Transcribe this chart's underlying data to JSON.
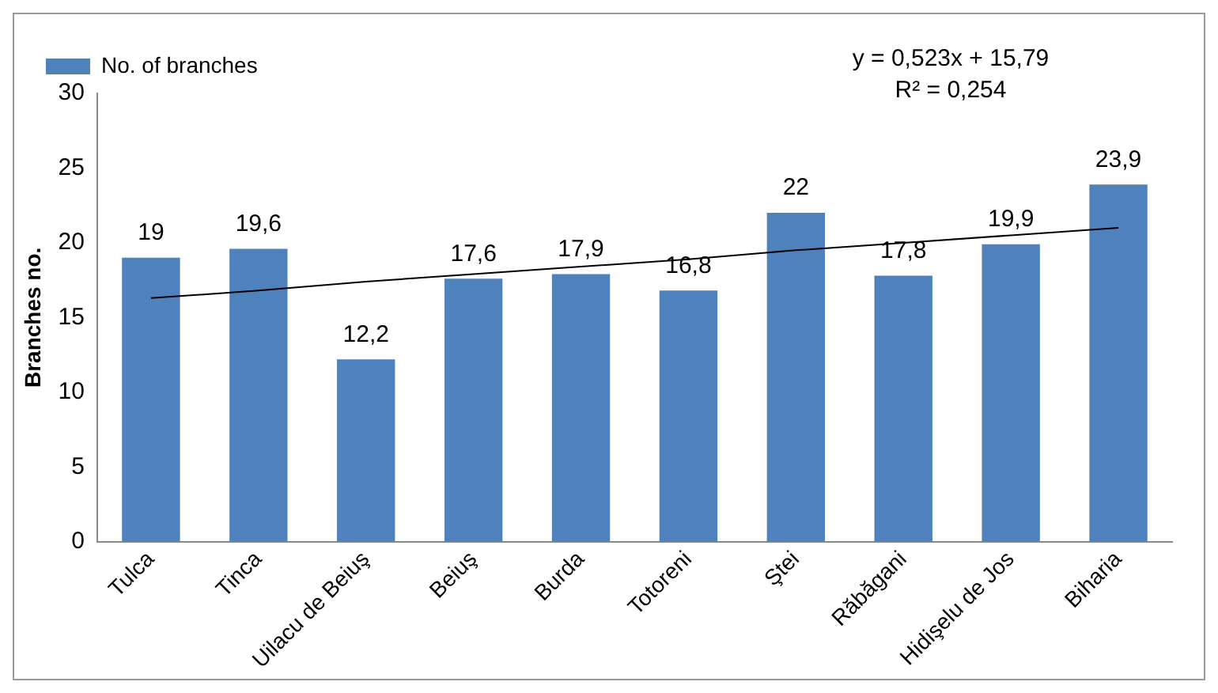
{
  "chart_data": {
    "type": "bar",
    "ylabel": "Branches no.",
    "categories": [
      "Tulca",
      "Tinca",
      "Uilacu de Beiuş",
      "Beiuş",
      "Burda",
      "Totoreni",
      "Ştei",
      "Răbăgani",
      "Hidişelu de Jos",
      "Biharia"
    ],
    "series": [
      {
        "name": "No. of branches",
        "color": "#4f81bd",
        "values": [
          19,
          19.6,
          12.2,
          17.6,
          17.9,
          16.8,
          22,
          17.8,
          19.9,
          23.9
        ],
        "value_labels": [
          "19",
          "19,6",
          "12,2",
          "17,6",
          "17,9",
          "16,8",
          "22",
          "17,8",
          "19,9",
          "23,9"
        ]
      },
      {
        "type": "line",
        "color": "#000000",
        "values": [
          16.3,
          16.8,
          17.4,
          17.9,
          18.4,
          18.9,
          19.5,
          20.0,
          20.5,
          21.0
        ]
      }
    ],
    "ylim": [
      0,
      30
    ],
    "yticks": [
      0,
      5,
      10,
      15,
      20,
      25,
      30
    ],
    "grid": false,
    "legend": "top",
    "marker": "none",
    "annotations": [
      "y = 0,523x + 15,79",
      "R² = 0,254"
    ]
  }
}
